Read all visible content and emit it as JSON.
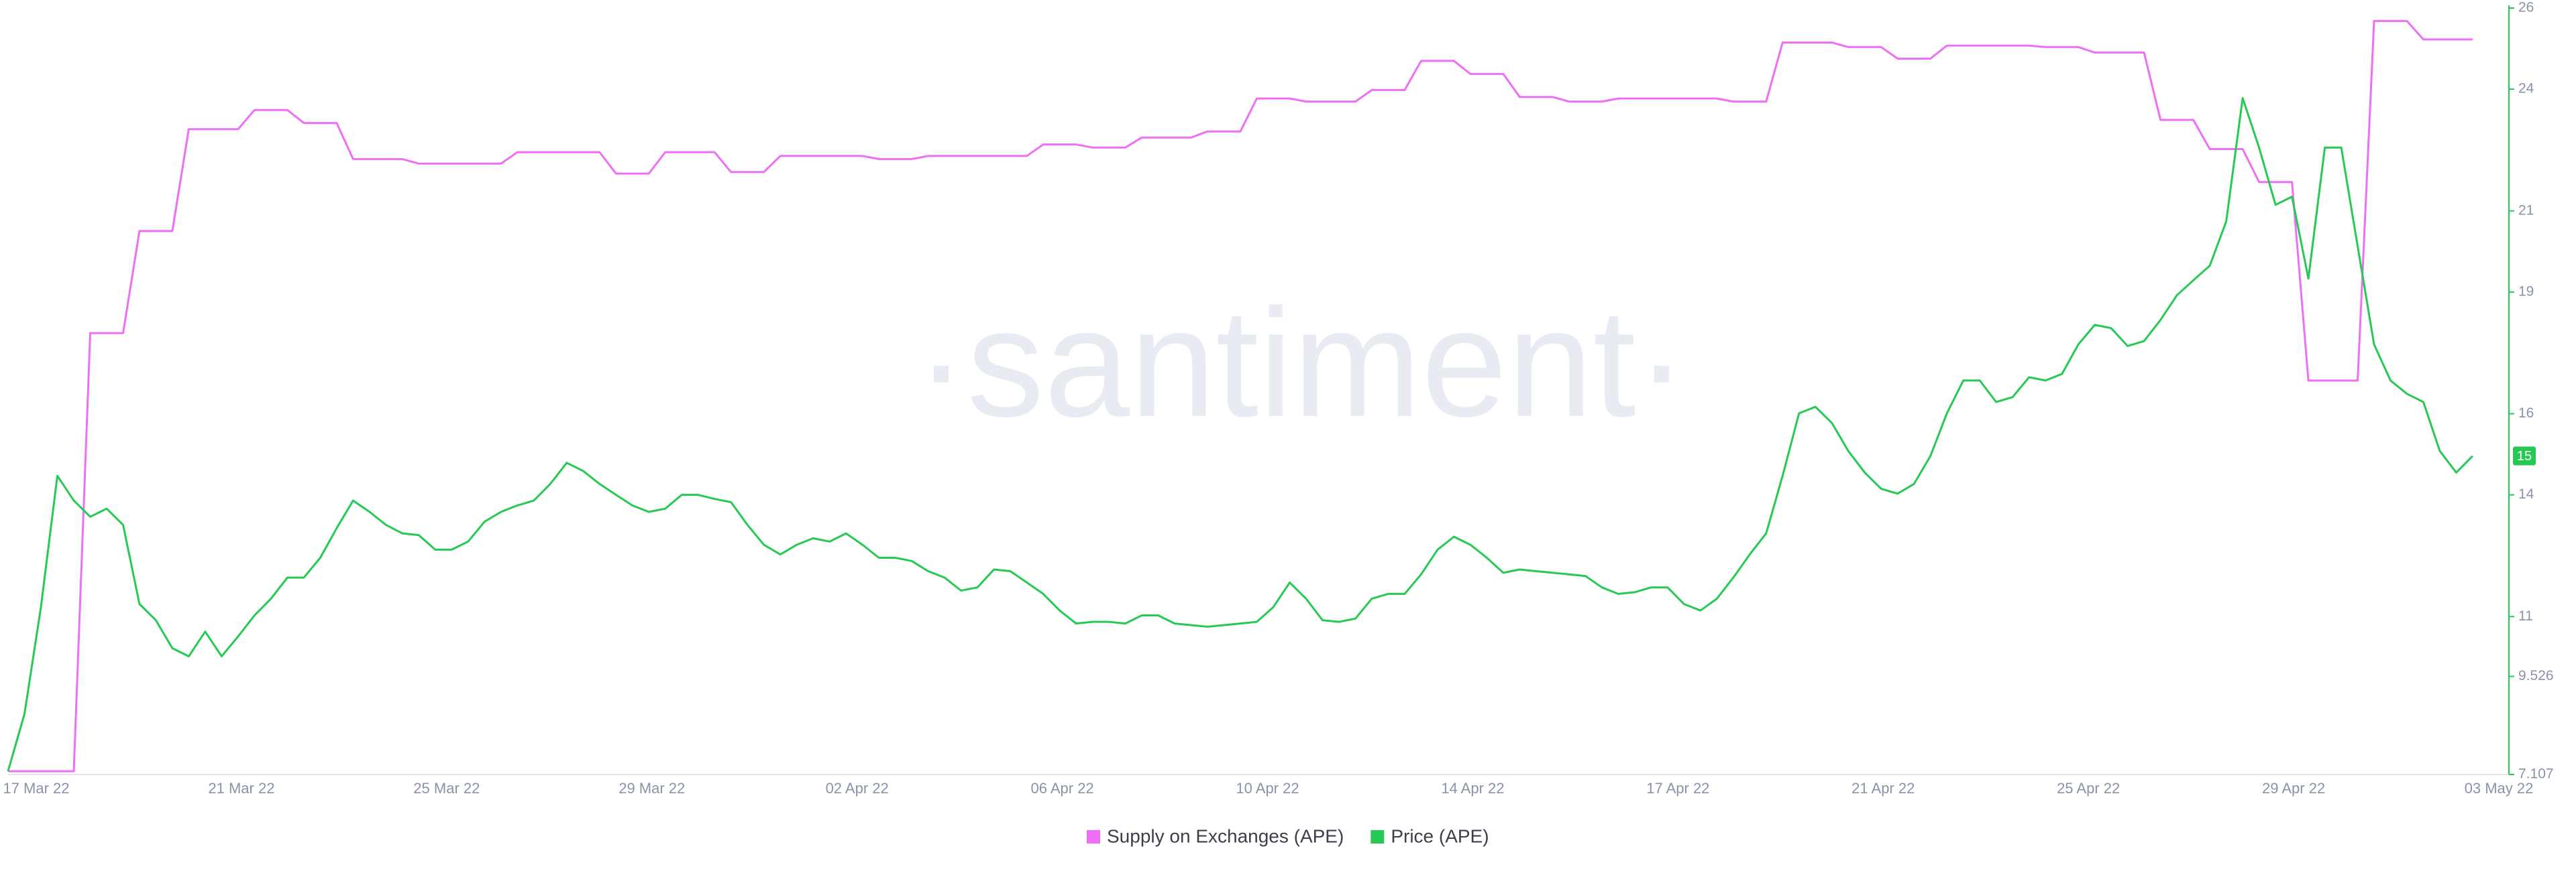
{
  "chart_data": {
    "type": "line",
    "watermark": "·santiment·",
    "xticks": [
      "17 Mar 22",
      "21 Mar 22",
      "25 Mar 22",
      "29 Mar 22",
      "02 Apr 22",
      "06 Apr 22",
      "10 Apr 22",
      "14 Apr 22",
      "17 Apr 22",
      "21 Apr 22",
      "25 Apr 22",
      "29 Apr 22",
      "03 May 22"
    ],
    "ylim": [
      7.107,
      26
    ],
    "yticks": [
      7.107,
      9.526,
      11,
      14,
      16,
      19,
      21,
      24,
      26
    ],
    "y2lim": [
      0,
      100
    ],
    "series": [
      {
        "name": "Supply on Exchanges (APE)",
        "color": "#ee6ef5",
        "axis": "y2",
        "values": [
          0.43,
          0.43,
          0.43,
          0.43,
          0.43,
          57.6,
          57.6,
          57.6,
          70.9,
          70.9,
          70.9,
          84.2,
          84.2,
          84.2,
          84.2,
          86.7,
          86.7,
          86.7,
          85.0,
          85.0,
          85.0,
          80.3,
          80.3,
          80.3,
          80.3,
          79.7,
          79.7,
          79.7,
          79.7,
          79.7,
          79.7,
          81.2,
          81.2,
          81.2,
          81.2,
          81.2,
          81.2,
          78.4,
          78.4,
          78.4,
          81.2,
          81.2,
          81.2,
          81.2,
          78.6,
          78.6,
          78.6,
          80.7,
          80.7,
          80.7,
          80.7,
          80.7,
          80.7,
          80.3,
          80.3,
          80.3,
          80.7,
          80.7,
          80.7,
          80.7,
          80.7,
          80.7,
          80.7,
          82.2,
          82.2,
          82.2,
          81.8,
          81.8,
          81.8,
          83.1,
          83.1,
          83.1,
          83.1,
          83.9,
          83.9,
          83.9,
          88.2,
          88.2,
          88.2,
          87.8,
          87.8,
          87.8,
          87.8,
          89.3,
          89.3,
          89.3,
          93.1,
          93.1,
          93.1,
          91.4,
          91.4,
          91.4,
          88.4,
          88.4,
          88.4,
          87.8,
          87.8,
          87.8,
          88.2,
          88.2,
          88.2,
          88.2,
          88.2,
          88.2,
          88.2,
          87.8,
          87.8,
          87.8,
          95.5,
          95.5,
          95.5,
          95.5,
          94.9,
          94.9,
          94.9,
          93.4,
          93.4,
          93.4,
          95.1,
          95.1,
          95.1,
          95.1,
          95.1,
          95.1,
          94.9,
          94.9,
          94.9,
          94.2,
          94.2,
          94.2,
          94.2,
          85.4,
          85.4,
          85.4,
          81.6,
          81.6,
          81.6,
          77.3,
          77.3,
          77.3,
          51.4,
          51.4,
          51.4,
          51.4,
          98.3,
          98.3,
          98.3,
          95.9,
          95.9,
          95.9,
          95.9
        ]
      },
      {
        "name": "Price (APE)",
        "color": "#26c953",
        "last_label": "15",
        "values": [
          7.19,
          8.6,
          11.23,
          14.47,
          13.86,
          13.46,
          13.66,
          13.26,
          11.31,
          10.91,
          10.22,
          10.02,
          10.63,
          10.02,
          10.51,
          11.03,
          11.44,
          11.96,
          11.96,
          12.45,
          13.18,
          13.86,
          13.58,
          13.26,
          13.05,
          13.01,
          12.65,
          12.65,
          12.85,
          13.34,
          13.58,
          13.74,
          13.86,
          14.27,
          14.79,
          14.59,
          14.27,
          14.0,
          13.74,
          13.58,
          13.66,
          14.0,
          14.0,
          13.9,
          13.82,
          13.26,
          12.77,
          12.53,
          12.77,
          12.93,
          12.85,
          13.05,
          12.77,
          12.45,
          12.45,
          12.37,
          12.12,
          11.96,
          11.64,
          11.72,
          12.16,
          12.12,
          11.84,
          11.56,
          11.15,
          10.83,
          10.87,
          10.87,
          10.83,
          11.03,
          11.03,
          10.83,
          10.79,
          10.75,
          10.79,
          10.83,
          10.87,
          11.23,
          11.84,
          11.44,
          10.91,
          10.87,
          10.95,
          11.44,
          11.56,
          11.56,
          12.04,
          12.65,
          12.97,
          12.77,
          12.45,
          12.08,
          12.16,
          12.12,
          12.08,
          12.04,
          12.0,
          11.72,
          11.56,
          11.6,
          11.72,
          11.72,
          11.31,
          11.15,
          11.44,
          11.96,
          12.53,
          13.05,
          14.47,
          16.01,
          16.17,
          15.77,
          15.08,
          14.55,
          14.15,
          14.03,
          14.27,
          14.96,
          16.01,
          16.82,
          16.82,
          16.29,
          16.41,
          16.9,
          16.82,
          16.98,
          17.71,
          18.19,
          18.11,
          17.67,
          17.79,
          18.31,
          18.92,
          19.29,
          19.65,
          20.74,
          23.78,
          22.56,
          21.15,
          21.35,
          19.33,
          22.56,
          22.56,
          20.13,
          17.71,
          16.82,
          16.49,
          16.29,
          15.08,
          14.55,
          14.96
        ]
      }
    ]
  }
}
